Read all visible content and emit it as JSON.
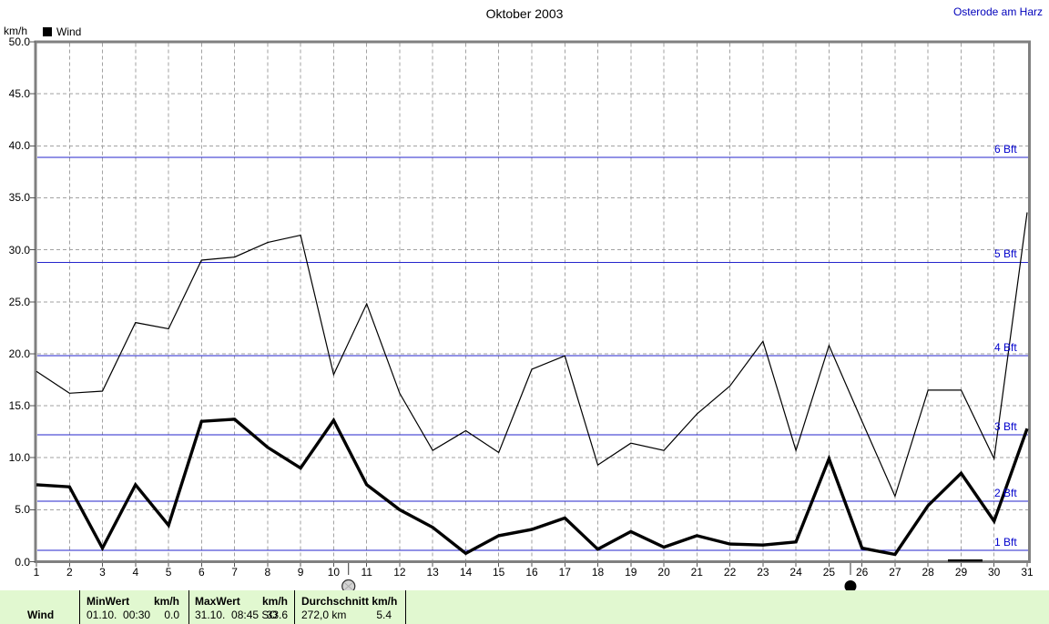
{
  "header": {
    "title": "Oktober 2003",
    "station": "Osterode am Harz",
    "y_unit": "km/h",
    "legend": [
      {
        "label": "Wind",
        "color": "#000000"
      }
    ]
  },
  "colors": {
    "station_text": "#0000bb",
    "bft_line": "#2525cc",
    "bft_text": "#0000cc",
    "grid": "#a2a2a2",
    "frame": "#808080",
    "tick": "#555555",
    "series": "#000000",
    "statusbar_bg": "#e1f8d0"
  },
  "chart_data": {
    "type": "line",
    "title": "Oktober 2003",
    "ylabel": "km/h",
    "ylim": [
      0,
      50
    ],
    "ytick_step": 5,
    "grid": true,
    "legend_position": "top-left",
    "x": [
      1,
      2,
      3,
      4,
      5,
      6,
      7,
      8,
      9,
      10,
      11,
      12,
      13,
      14,
      15,
      16,
      17,
      18,
      19,
      20,
      21,
      22,
      23,
      24,
      25,
      26,
      27,
      28,
      29,
      30,
      31
    ],
    "series": [
      {
        "name": "Wind",
        "line": "thin",
        "values": [
          18.3,
          16.2,
          16.4,
          23.0,
          22.4,
          29.0,
          29.3,
          30.7,
          31.4,
          18.0,
          24.8,
          16.2,
          10.7,
          12.6,
          10.5,
          18.5,
          19.8,
          9.3,
          11.4,
          10.7,
          14.2,
          16.9,
          21.2,
          10.7,
          20.8,
          13.5,
          6.3,
          16.5,
          16.5,
          9.9,
          33.6
        ]
      },
      {
        "name": "Wind",
        "line": "thick",
        "values": [
          7.4,
          7.2,
          1.3,
          7.4,
          3.5,
          13.5,
          13.7,
          11.0,
          9.0,
          13.6,
          7.4,
          5.0,
          3.3,
          0.8,
          2.5,
          3.1,
          4.2,
          1.2,
          2.9,
          1.4,
          2.5,
          1.7,
          1.6,
          1.9,
          9.9,
          1.3,
          0.7,
          5.4,
          8.5,
          3.9,
          12.8
        ]
      }
    ],
    "beaufort_lines": [
      {
        "label": "1 Bft",
        "value": 1.1
      },
      {
        "label": "2 Bft",
        "value": 5.8
      },
      {
        "label": "3 Bft",
        "value": 12.2
      },
      {
        "label": "4 Bft",
        "value": 19.8
      },
      {
        "label": "5 Bft",
        "value": 28.8
      },
      {
        "label": "6 Bft",
        "value": 38.9
      }
    ],
    "moon_markers": [
      {
        "symbol": "full-moon",
        "day": 10.45
      },
      {
        "symbol": "new-moon",
        "day": 25.65
      }
    ],
    "zero_segment": {
      "from_day": 28.6,
      "to_day": 29.65
    }
  },
  "status_bar": {
    "row_label": "Wind",
    "min": {
      "header": "MinWert",
      "unit": "km/h",
      "datetime": "01.10.  00:30",
      "value": "0.0"
    },
    "max": {
      "header": "MaxWert",
      "unit": "km/h",
      "datetime": "31.10.  08:45 SO",
      "value": "33.6"
    },
    "avg": {
      "header": "Durchschnitt km/h",
      "distance": "272,0 km",
      "value": "5.4"
    }
  }
}
